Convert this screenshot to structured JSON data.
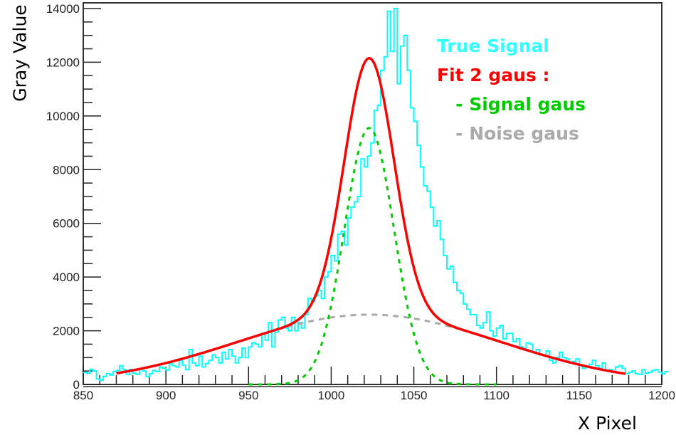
{
  "chart_data": {
    "type": "line",
    "title": "",
    "xlabel": "X Pixel",
    "ylabel": "Gray Value",
    "xlim": [
      850,
      1200
    ],
    "ylim": [
      0,
      14000
    ],
    "x_ticks": [
      850,
      900,
      950,
      1000,
      1050,
      1100,
      1150,
      1200
    ],
    "y_ticks": [
      0,
      2000,
      4000,
      6000,
      8000,
      10000,
      12000,
      14000
    ],
    "grid": false,
    "legend_position": "top-right (inline text)",
    "legend": [
      {
        "label": "True Signal",
        "color": "#00ffff"
      },
      {
        "label": "Fit 2 gaus :",
        "color": "#ff0000"
      },
      {
        "label": "   - Signal gaus",
        "color": "#00cc00"
      },
      {
        "label": "   - Noise gaus",
        "color": "#aaaaaa"
      }
    ],
    "series": [
      {
        "name": "True Signal",
        "kind": "histogram",
        "color": "#00ffff",
        "bin_start": 850,
        "bin_width": 2,
        "values": [
          450,
          420,
          560,
          500,
          200,
          150,
          300,
          400,
          350,
          480,
          520,
          700,
          550,
          380,
          560,
          420,
          380,
          570,
          500,
          300,
          400,
          520,
          480,
          650,
          600,
          540,
          780,
          700,
          650,
          900,
          720,
          550,
          1300,
          800,
          700,
          1050,
          650,
          780,
          900,
          1100,
          1000,
          800,
          1200,
          950,
          1300,
          1050,
          800,
          1000,
          1350,
          1000,
          1400,
          1550,
          1500,
          1400,
          1900,
          1650,
          2300,
          1400,
          1950,
          2400,
          2500,
          2100,
          2000,
          2500,
          2000,
          2300,
          2100,
          2600,
          3200,
          3100,
          3300,
          3500,
          3200,
          4000,
          4200,
          4800,
          4600,
          5600,
          5700,
          5200,
          6200,
          6600,
          6800,
          7000,
          8400,
          8100,
          8500,
          9000,
          10200,
          10400,
          11700,
          12200,
          13900,
          12400,
          14000,
          11200,
          12600,
          13000,
          11700,
          10300,
          9800,
          8900,
          8100,
          7400,
          7200,
          6600,
          5900,
          6100,
          5400,
          4800,
          4300,
          4400,
          3800,
          3500,
          3400,
          3000,
          2800,
          2600,
          2600,
          2200,
          2100,
          2300,
          2700,
          2000,
          1800,
          2100,
          2200,
          1700,
          1900,
          1900,
          1600,
          1700,
          1400,
          1350,
          1550,
          1500,
          1200,
          1300,
          1100,
          1100,
          1250,
          900,
          800,
          1000,
          1200,
          1000,
          950,
          800,
          850,
          950,
          700,
          600,
          650,
          750,
          900,
          700,
          600,
          800,
          500,
          550,
          450,
          650,
          700,
          600,
          400,
          450,
          500,
          400,
          380,
          550,
          420,
          460,
          520,
          550,
          450,
          400,
          480
        ]
      },
      {
        "name": "Fit 2 gaus",
        "kind": "curve",
        "color": "#ff0000",
        "x_range": [
          870,
          1178
        ],
        "peak_x": 1023,
        "peak_y": 12150
      },
      {
        "name": "Signal gaus",
        "kind": "curve",
        "color": "#00cc00",
        "style": "dashed",
        "amplitude": 9550,
        "mean": 1023,
        "sigma": 15,
        "x_range": [
          950,
          1100
        ]
      },
      {
        "name": "Noise gaus",
        "kind": "curve",
        "color": "#aaaaaa",
        "style": "dashed",
        "amplitude": 2600,
        "mean": 1023,
        "sigma": 80,
        "x_range": [
          955,
          1095
        ]
      }
    ]
  },
  "legend": {
    "true_signal": "True Signal",
    "fit": "Fit 2 gaus :",
    "signal_gaus": "   - Signal gaus",
    "noise_gaus": "   - Noise gaus"
  },
  "axes": {
    "xlabel": "X Pixel",
    "ylabel": "Gray Value"
  }
}
